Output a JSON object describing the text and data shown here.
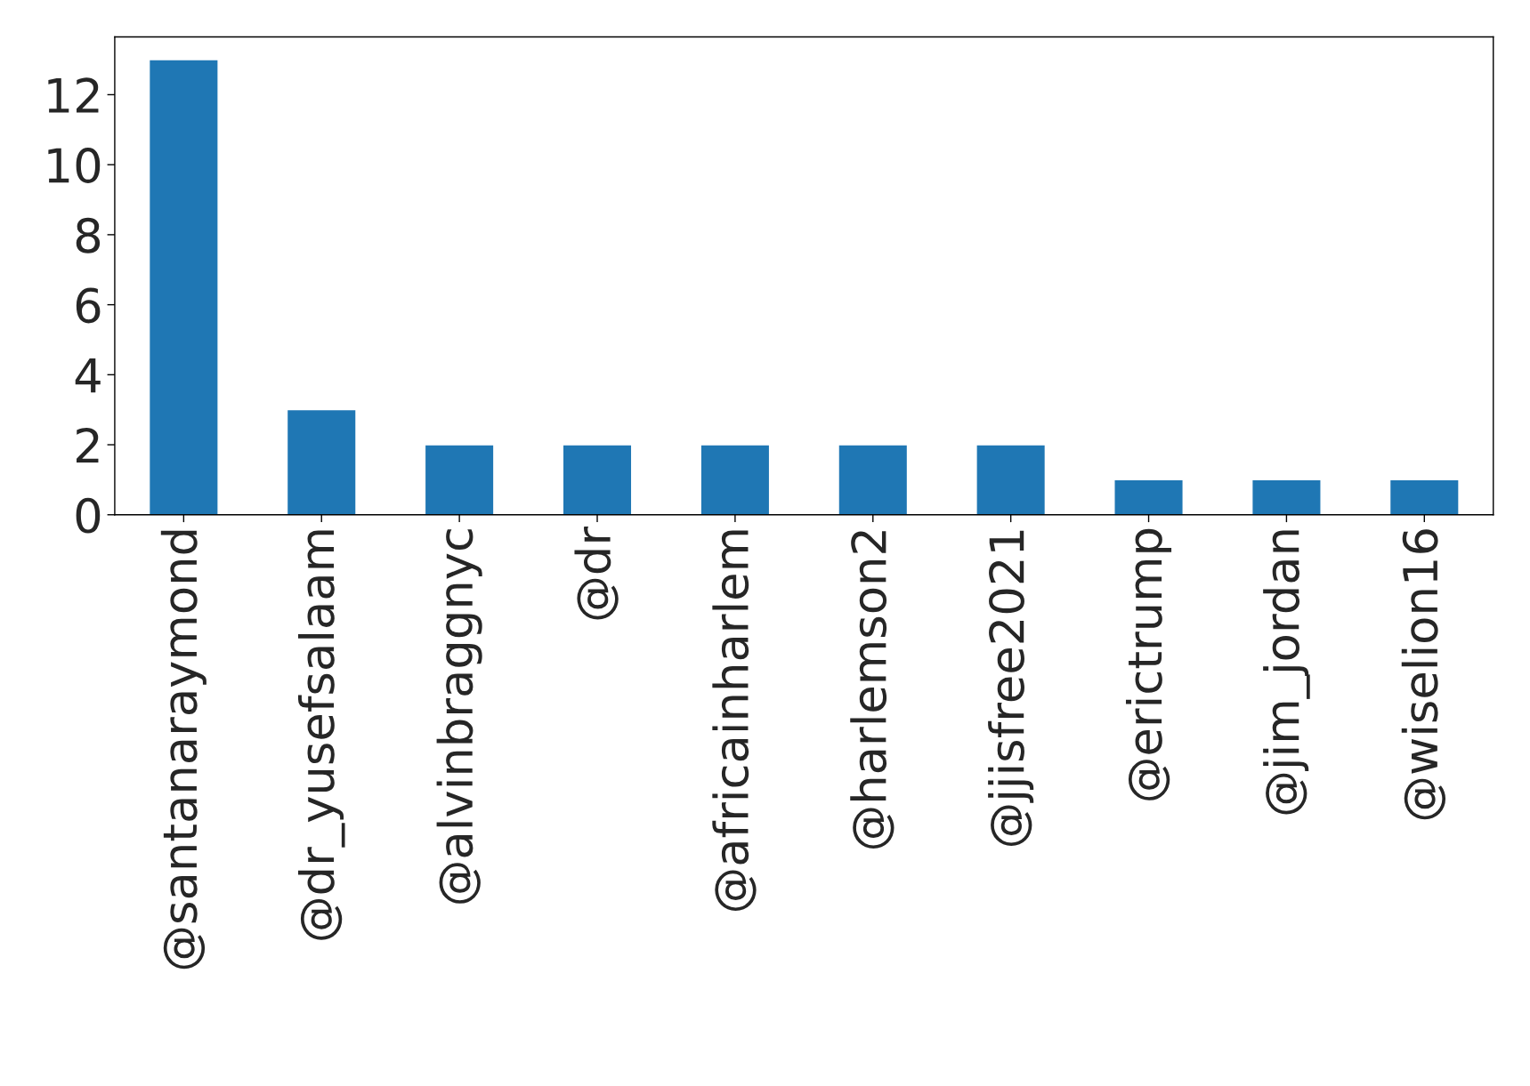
{
  "chart_data": {
    "type": "bar",
    "categories": [
      "@santanaraymond",
      "@dr_yusefsalaam",
      "@alvinbraggnyc",
      "@dr",
      "@africainharlem",
      "@harlemson2",
      "@jjisfree2021",
      "@erictrump",
      "@jim_jordan",
      "@wiselion16"
    ],
    "values": [
      13,
      3,
      2,
      2,
      2,
      2,
      2,
      1,
      1,
      1
    ],
    "color": "#1f77b4",
    "ylim": [
      0,
      13.65
    ],
    "yticks": [
      0,
      2,
      4,
      6,
      8,
      10,
      12
    ],
    "grid": false,
    "legend": false
  }
}
